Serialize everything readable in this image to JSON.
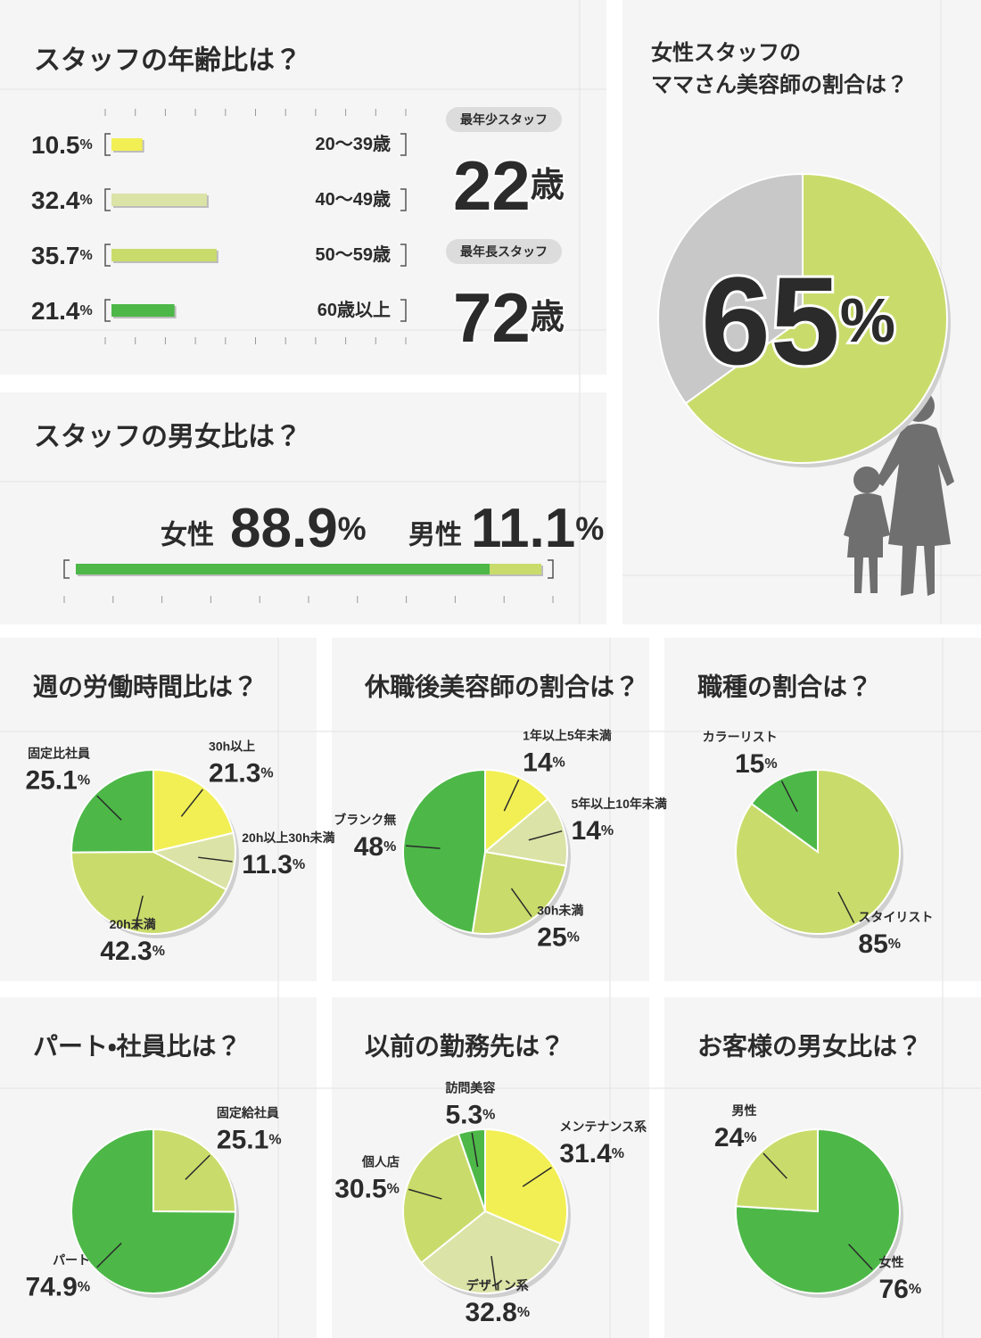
{
  "chart_data": [
    {
      "type": "bar",
      "orientation": "horizontal",
      "title": "スタッフの年齢比は？",
      "categories": [
        "20～39歳",
        "40～49歳",
        "50～59歳",
        "60歳以上"
      ],
      "values": [
        10.5,
        32.4,
        35.7,
        21.4
      ],
      "value_labels": [
        "10.5%",
        "32.4%",
        "35.7%",
        "21.4%"
      ],
      "colors": [
        "#f2ef55",
        "#dbe3a6",
        "#c9dc6b",
        "#4db848"
      ],
      "xlim": [
        0,
        100
      ],
      "annotations": [
        {
          "label": "最年少スタッフ",
          "text": "22歳"
        },
        {
          "label": "最年長スタッフ",
          "text": "72歳"
        }
      ]
    },
    {
      "type": "stacked-bar",
      "orientation": "horizontal",
      "title": "スタッフの男女比は？",
      "series": [
        {
          "name": "女性",
          "color": "#4db848",
          "values": [
            88.9
          ],
          "value_labels": [
            "88.9%"
          ]
        },
        {
          "name": "男性",
          "color": "#c9dc6b",
          "values": [
            11.1
          ],
          "value_labels": [
            "11.1%"
          ]
        }
      ],
      "xlim": [
        0,
        100
      ]
    },
    {
      "type": "pie",
      "title": "女性スタッフの\nママさん美容師の割合は？",
      "values": [
        65,
        35
      ],
      "value_labels": [
        "65%",
        null
      ],
      "colors": [
        "#c9dc6b",
        "#c8c8c8"
      ]
    },
    {
      "type": "pie",
      "title": "週の労働時間比は？",
      "categories": [
        "30h以上",
        "20h以上30h未満",
        "20h未満",
        "固定比社員"
      ],
      "values": [
        21.3,
        11.3,
        42.3,
        25.1
      ],
      "value_labels": [
        "21.3%",
        "11.3%",
        "42.3%",
        "25.1%"
      ],
      "colors": [
        "#f2ef55",
        "#dbe3a6",
        "#c9dc6b",
        "#4db848"
      ]
    },
    {
      "type": "pie",
      "title": "休職後美容師の割合は？",
      "categories": [
        "1年以上5年未満",
        "5年以上10年未満",
        "30h未満",
        "ブランク無"
      ],
      "values": [
        14,
        14,
        25,
        48
      ],
      "value_labels": [
        "14%",
        "14%",
        "25%",
        "48%"
      ],
      "colors": [
        "#f2ef55",
        "#dbe3a6",
        "#c9dc6b",
        "#4db848"
      ]
    },
    {
      "type": "pie",
      "title": "職種の割合は？",
      "categories": [
        "スタイリスト",
        "カラーリスト"
      ],
      "values": [
        85,
        15
      ],
      "value_labels": [
        "85%",
        "15%"
      ],
      "colors": [
        "#c9dc6b",
        "#4db848"
      ]
    },
    {
      "type": "pie",
      "title": "パート・社員比は？",
      "categories": [
        "固定給社員",
        "パート"
      ],
      "values": [
        25.1,
        74.9
      ],
      "value_labels": [
        "25.1%",
        "74.9%"
      ],
      "colors": [
        "#c9dc6b",
        "#4db848"
      ]
    },
    {
      "type": "pie",
      "title": "以前の勤務先は？",
      "categories": [
        "メンテナンス系",
        "デザイン系",
        "個人店",
        "訪問美容"
      ],
      "values": [
        31.4,
        32.8,
        30.5,
        5.3
      ],
      "value_labels": [
        "31.4%",
        "32.8%",
        "30.5%",
        "5.3%"
      ],
      "colors": [
        "#f2ef55",
        "#dbe3a6",
        "#c9dc6b",
        "#4db848"
      ]
    },
    {
      "type": "pie",
      "title": "お客様の男女比は？",
      "categories": [
        "女性",
        "男性"
      ],
      "values": [
        76,
        24
      ],
      "value_labels": [
        "76%",
        "24%"
      ],
      "colors": [
        "#4db848",
        "#c9dc6b"
      ]
    }
  ]
}
